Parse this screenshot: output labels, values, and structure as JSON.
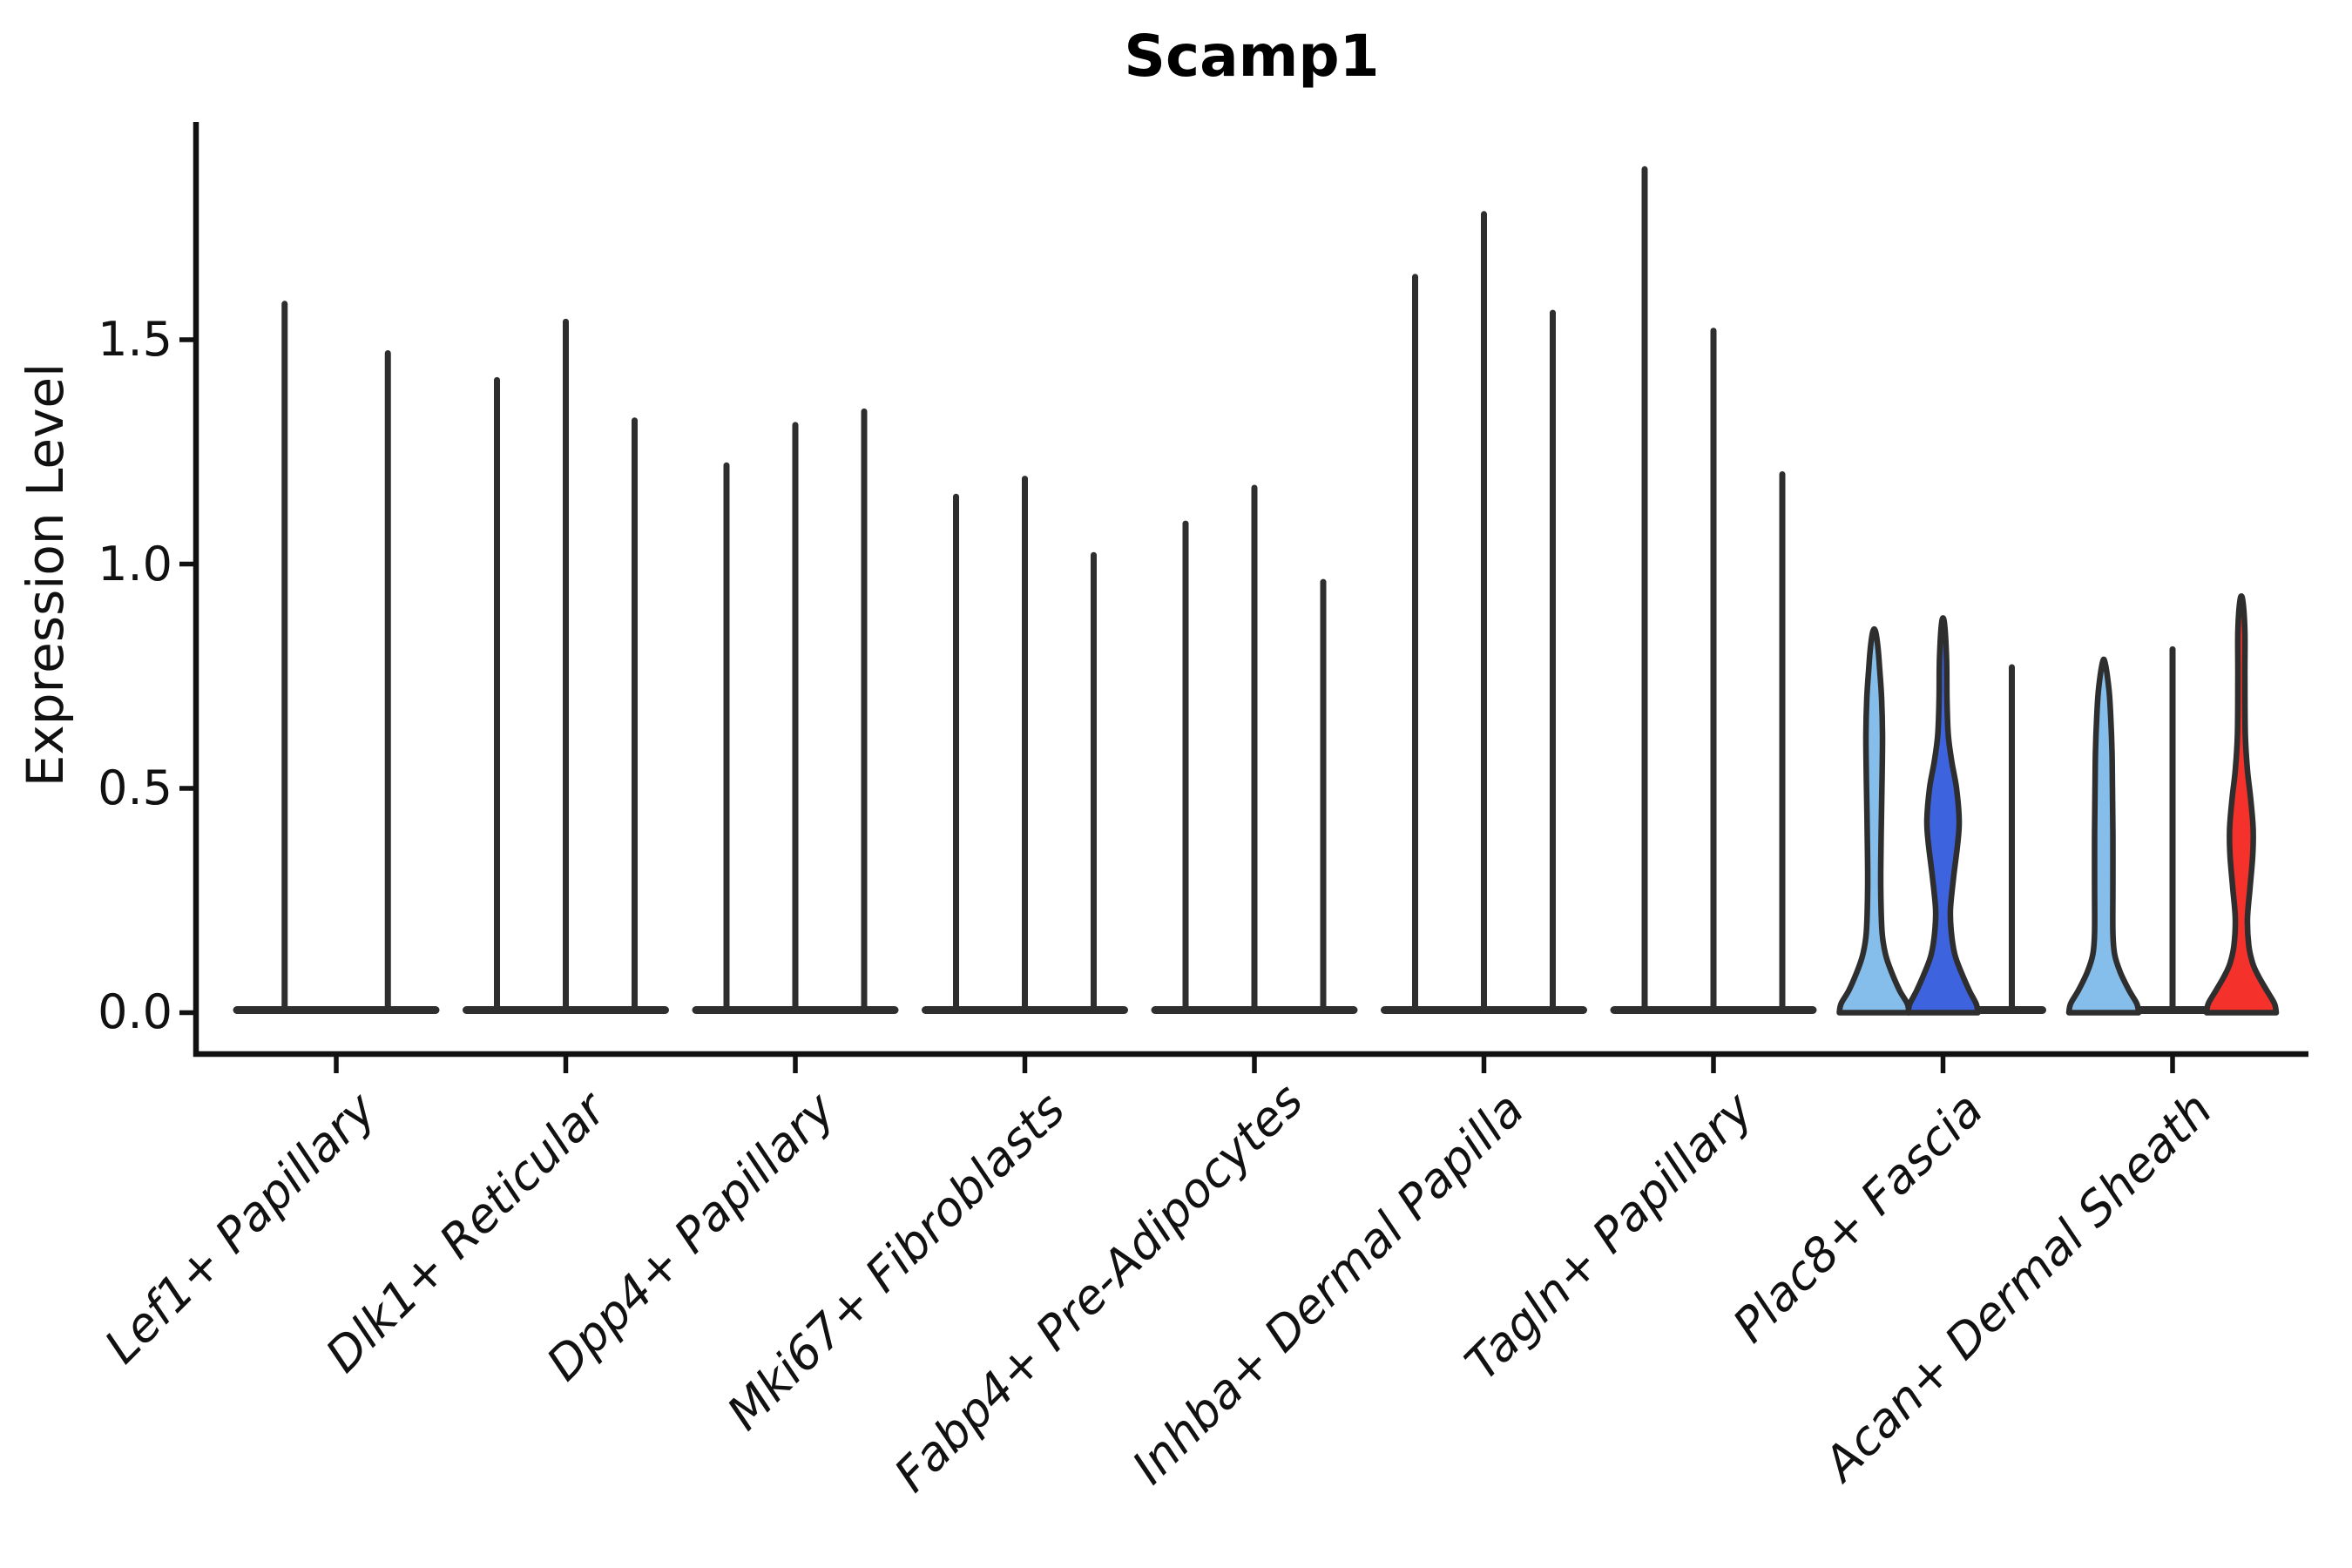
{
  "chart_data": {
    "type": "violin",
    "title": "Scamp1",
    "ylabel": "Expression Level",
    "ylim": [
      0,
      1.98
    ],
    "grid": "off",
    "legend": "none",
    "ytick_values": [
      0.0,
      0.5,
      1.0,
      1.5
    ],
    "ytick_labels": [
      "0.0",
      "0.5",
      "1.0",
      "1.5"
    ],
    "categories": [
      "Lef1+ Papillary",
      "Dlk1+ Reticular",
      "Dpp4+ Papillary",
      "Mki67+ Fibroblasts",
      "Fabp4+ Pre-Adipocytes",
      "Inhba+ Dermal Papilla",
      "Tagln+ Papillary",
      "Plac8+ Fascia",
      "Acan+ Dermal Sheath"
    ],
    "colors": {
      "light_blue": "#85BEEB",
      "dark_blue": "#3D64DE",
      "red": "#F5312B",
      "outline": "#2E2E2E",
      "axis": "#111111"
    },
    "groups": [
      {
        "category": "Lef1+ Papillary",
        "violins": [
          {
            "kind": "spike",
            "max": 1.58
          },
          {
            "kind": "spike",
            "max": 1.47
          }
        ]
      },
      {
        "category": "Dlk1+ Reticular",
        "violins": [
          {
            "kind": "spike",
            "max": 1.41
          },
          {
            "kind": "spike",
            "max": 1.54
          },
          {
            "kind": "spike",
            "max": 1.32
          }
        ]
      },
      {
        "category": "Dpp4+ Papillary",
        "violins": [
          {
            "kind": "spike",
            "max": 1.22
          },
          {
            "kind": "spike",
            "max": 1.31
          },
          {
            "kind": "spike",
            "max": 1.34
          }
        ]
      },
      {
        "category": "Mki67+ Fibroblasts",
        "violins": [
          {
            "kind": "spike",
            "max": 1.15
          },
          {
            "kind": "spike",
            "max": 1.19
          },
          {
            "kind": "spike",
            "max": 1.02
          }
        ]
      },
      {
        "category": "Fabp4+ Pre-Adipocytes",
        "violins": [
          {
            "kind": "spike",
            "max": 1.09
          },
          {
            "kind": "spike",
            "max": 1.17
          },
          {
            "kind": "spike",
            "max": 0.96
          }
        ]
      },
      {
        "category": "Inhba+ Dermal Papilla",
        "violins": [
          {
            "kind": "spike",
            "max": 1.64
          },
          {
            "kind": "spike",
            "max": 1.78
          },
          {
            "kind": "spike",
            "max": 1.56
          }
        ]
      },
      {
        "category": "Tagln+ Papillary",
        "violins": [
          {
            "kind": "spike",
            "max": 1.88
          },
          {
            "kind": "spike",
            "max": 1.52
          },
          {
            "kind": "spike",
            "max": 1.2
          }
        ]
      },
      {
        "category": "Plac8+ Fascia",
        "violins": [
          {
            "kind": "violin",
            "max": 0.85,
            "fill_key": "light_blue",
            "profile": [
              [
                0,
                40
              ],
              [
                0.02,
                38
              ],
              [
                0.05,
                29
              ],
              [
                0.09,
                20
              ],
              [
                0.13,
                13
              ],
              [
                0.18,
                9
              ],
              [
                0.28,
                7.5
              ],
              [
                0.4,
                8
              ],
              [
                0.52,
                9
              ],
              [
                0.62,
                9.5
              ],
              [
                0.7,
                8.5
              ],
              [
                0.76,
                6.5
              ],
              [
                0.81,
                4.5
              ],
              [
                0.85,
                1.5
              ]
            ]
          },
          {
            "kind": "violin",
            "max": 0.87,
            "fill_key": "dark_blue",
            "profile": [
              [
                0,
                40
              ],
              [
                0.02,
                38
              ],
              [
                0.05,
                30
              ],
              [
                0.09,
                21
              ],
              [
                0.13,
                13.5
              ],
              [
                0.18,
                9.5
              ],
              [
                0.23,
                8.5
              ],
              [
                0.3,
                12
              ],
              [
                0.38,
                17
              ],
              [
                0.43,
                18.5
              ],
              [
                0.5,
                15.5
              ],
              [
                0.56,
                10
              ],
              [
                0.62,
                6
              ],
              [
                0.7,
                4.5
              ],
              [
                0.79,
                4
              ],
              [
                0.87,
                1.5
              ]
            ]
          },
          {
            "kind": "spike",
            "max": 0.77
          }
        ]
      },
      {
        "category": "Acan+ Dermal Sheath",
        "violins": [
          {
            "kind": "violin",
            "max": 0.78,
            "fill_key": "light_blue",
            "profile": [
              [
                0,
                40
              ],
              [
                0.02,
                38
              ],
              [
                0.05,
                29
              ],
              [
                0.09,
                19
              ],
              [
                0.13,
                12.5
              ],
              [
                0.18,
                10.5
              ],
              [
                0.28,
                10.5
              ],
              [
                0.4,
                10.5
              ],
              [
                0.5,
                10
              ],
              [
                0.58,
                9.5
              ],
              [
                0.66,
                8
              ],
              [
                0.72,
                6
              ],
              [
                0.78,
                1.5
              ]
            ]
          },
          {
            "kind": "spike",
            "max": 0.81
          },
          {
            "kind": "violin",
            "max": 0.92,
            "fill_key": "red",
            "profile": [
              [
                0,
                40
              ],
              [
                0.02,
                38
              ],
              [
                0.05,
                29
              ],
              [
                0.08,
                20
              ],
              [
                0.11,
                13
              ],
              [
                0.15,
                8.5
              ],
              [
                0.21,
                7
              ],
              [
                0.28,
                10
              ],
              [
                0.35,
                13
              ],
              [
                0.41,
                13.5
              ],
              [
                0.48,
                10.5
              ],
              [
                0.54,
                7
              ],
              [
                0.62,
                4.5
              ],
              [
                0.75,
                4
              ],
              [
                0.85,
                4
              ],
              [
                0.92,
                1.5
              ]
            ]
          }
        ]
      }
    ]
  }
}
